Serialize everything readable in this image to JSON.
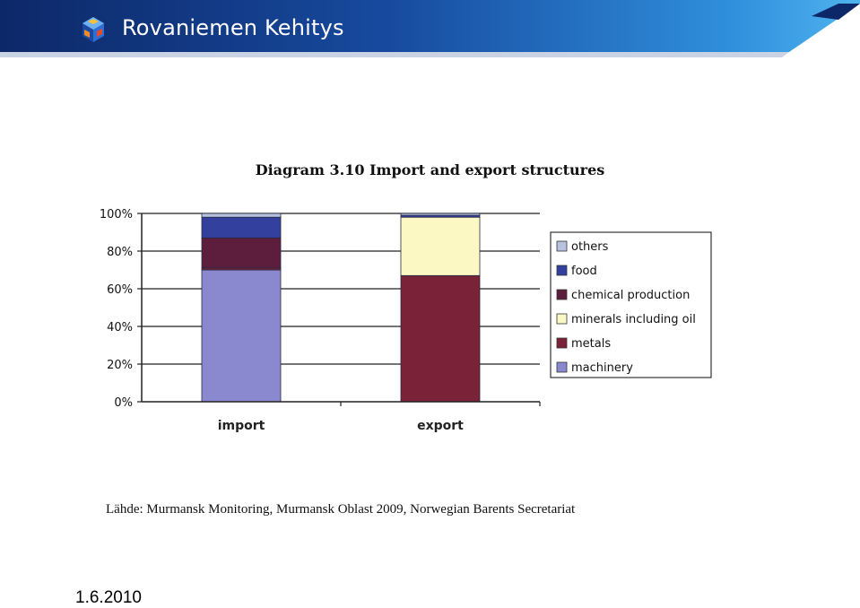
{
  "header": {
    "brand_name": "Rovaniemen Kehitys",
    "logo_icon": "hexagon-cubes-logo",
    "colors": {
      "band_dark": "#0d2868",
      "band_light": "#3aa4e8"
    }
  },
  "chart_data": {
    "type": "bar",
    "stacked": true,
    "title": "Diagram 3.10  Import and export structures",
    "categories": [
      "import",
      "export"
    ],
    "y_tick_labels": [
      "0%",
      "20%",
      "40%",
      "60%",
      "80%",
      "100%"
    ],
    "ylim": [
      0,
      100
    ],
    "legend_position": "right",
    "series": [
      {
        "name": "machinery",
        "color": "#8a88cf",
        "values": [
          70,
          0
        ]
      },
      {
        "name": "metals",
        "color": "#7a2238",
        "values": [
          1,
          67
        ]
      },
      {
        "name": "minerals including oil",
        "color": "#fbf8c4",
        "values": [
          0,
          31
        ]
      },
      {
        "name": "chemical production",
        "color": "#5c1e3c",
        "values": [
          16,
          0
        ]
      },
      {
        "name": "food",
        "color": "#33409e",
        "values": [
          11,
          1
        ]
      },
      {
        "name": "others",
        "color": "#b6c3df",
        "values": [
          2,
          1
        ]
      }
    ],
    "legend_order": [
      "others",
      "food",
      "chemical production",
      "minerals including oil",
      "metals",
      "machinery"
    ]
  },
  "footer": {
    "source": "Lähde: Murmansk Monitoring, Murmansk Oblast 2009, Norwegian Barents Secretariat",
    "date": "1.6.2010"
  }
}
